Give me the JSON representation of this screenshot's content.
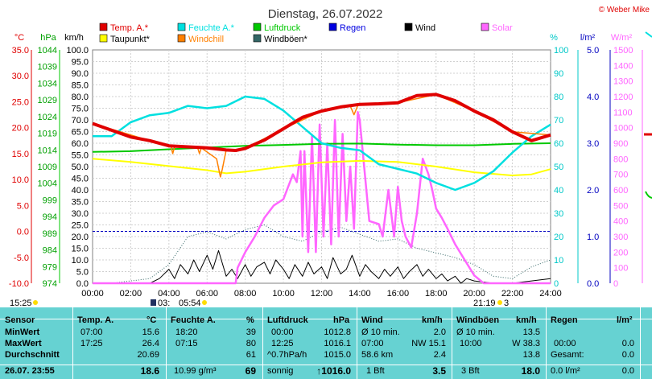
{
  "header": {
    "title": "Dienstag, 26.07.2022",
    "copyright": "© Weber Mike"
  },
  "axis_units": {
    "temp": "°C",
    "pressure": "hPa",
    "wind": "km/h",
    "humidity": "%",
    "rain": "l/m²",
    "solar": "W/m²"
  },
  "legend": [
    {
      "label": "Temp. A.*",
      "color": "#e00000"
    },
    {
      "label": "Feuchte A.*",
      "color": "#00e0e0"
    },
    {
      "label": "Luftdruck",
      "color": "#00c800"
    },
    {
      "label": "Regen",
      "color": "#0000e0"
    },
    {
      "label": "Wind",
      "color": "#000000"
    },
    {
      "label": "Solar",
      "color": "#ff66ff"
    },
    {
      "label": "Taupunkt*",
      "color": "#ffff00"
    },
    {
      "label": "Windchill",
      "color": "#ff8000"
    },
    {
      "label": "Windböen*",
      "color": "#336666"
    }
  ],
  "sun": {
    "time_left": "15:25",
    "sunrise": "05:54",
    "moon_marker": "03:",
    "sunset": "21:19",
    "moon_after": "3"
  },
  "chart_data": {
    "type": "line",
    "x_ticks": [
      "00:00",
      "02:00",
      "04:00",
      "06:00",
      "08:00",
      "10:00",
      "12:00",
      "14:00",
      "16:00",
      "18:00",
      "20:00",
      "22:00",
      "24:00"
    ],
    "xlim": [
      0,
      24
    ],
    "axes": {
      "temp": {
        "ticks": [
          "35.0",
          "30.0",
          "25.0",
          "20.0",
          "15.0",
          "10.0",
          "5.0",
          "0.0",
          "-5.0",
          "-10.0"
        ],
        "range": [
          -10,
          35
        ]
      },
      "pressure": {
        "ticks": [
          "1044",
          "1039",
          "1034",
          "1029",
          "1024",
          "1019",
          "1014",
          "1009",
          "1004",
          "999",
          "994",
          "989",
          "984",
          "979",
          "974"
        ],
        "range": [
          974,
          1044
        ]
      },
      "wind": {
        "ticks": [
          "100.0",
          "95.0",
          "90.0",
          "85.0",
          "80.0",
          "75.0",
          "70.0",
          "65.0",
          "60.0",
          "55.0",
          "50.0",
          "45.0",
          "40.0",
          "35.0",
          "30.0",
          "25.0",
          "20.0",
          "15.0",
          "10.0",
          "5.0",
          "0.0"
        ],
        "range": [
          0,
          100
        ]
      },
      "humidity": {
        "ticks": [
          "100",
          "90",
          "80",
          "70",
          "60",
          "50",
          "40",
          "30",
          "20",
          "10",
          "0"
        ],
        "range": [
          0,
          100
        ]
      },
      "rain": {
        "ticks": [
          "5.0",
          "4.0",
          "3.0",
          "2.0",
          "1.0",
          "0.0"
        ],
        "range": [
          0,
          5
        ]
      },
      "solar": {
        "ticks": [
          "1500",
          "1400",
          "1300",
          "1200",
          "1100",
          "1000",
          "900",
          "800",
          "700",
          "600",
          "500",
          "400",
          "300",
          "200",
          "100",
          "0"
        ],
        "range": [
          0,
          1500
        ]
      }
    },
    "series": [
      {
        "name": "Temp. A.*",
        "axis": "temp",
        "x": [
          0,
          1,
          2,
          3,
          4,
          5,
          6,
          7,
          7.5,
          8,
          9,
          10,
          11,
          12,
          13,
          14,
          15,
          16,
          17,
          18,
          19,
          20,
          21,
          22,
          23,
          24
        ],
        "y": [
          20.8,
          19.5,
          18.2,
          17.5,
          16.5,
          16.3,
          16.1,
          15.7,
          15.6,
          16,
          17.6,
          19.8,
          22,
          23.2,
          24,
          24.5,
          24.6,
          24.8,
          26.2,
          26.4,
          25.2,
          23.2,
          21.5,
          19.2,
          17.5,
          18.6
        ]
      },
      {
        "name": "Feuchte A.*",
        "axis": "humidity",
        "x": [
          0,
          1,
          2,
          3,
          4,
          5,
          6,
          7,
          8,
          9,
          10,
          11,
          12,
          13,
          14,
          15,
          16,
          17,
          18,
          19,
          20,
          21,
          22,
          23,
          24
        ],
        "y": [
          63,
          63,
          69,
          72,
          73,
          76,
          75,
          76,
          80,
          79,
          74,
          67,
          60,
          58,
          57,
          51,
          49,
          47,
          43,
          40,
          43,
          48,
          56,
          63,
          68
        ]
      },
      {
        "name": "Luftdruck",
        "axis": "pressure",
        "x": [
          0,
          2,
          4,
          6,
          8,
          10,
          12,
          14,
          16,
          18,
          20,
          22,
          24
        ],
        "y": [
          1013.4,
          1013.6,
          1014.2,
          1014.7,
          1015.2,
          1015.5,
          1015.8,
          1015.9,
          1015.6,
          1015.4,
          1015.4,
          1015.8,
          1016.0
        ]
      },
      {
        "name": "Taupunkt*",
        "axis": "temp",
        "x": [
          0,
          2,
          4,
          6,
          7,
          8,
          10,
          12,
          14,
          16,
          18,
          20,
          22,
          23,
          24
        ],
        "y": [
          14,
          13.4,
          12.6,
          11.8,
          11.2,
          11.5,
          12.5,
          13.3,
          13.6,
          13.4,
          12.5,
          11.4,
          10.8,
          11,
          12
        ]
      },
      {
        "name": "Windchill",
        "axis": "temp",
        "x": [
          0,
          3,
          4.1,
          4.2,
          4.3,
          5,
          5.5,
          5.6,
          5.7,
          6.5,
          6.7,
          6.8,
          7,
          7.5,
          8,
          10,
          12,
          13.5,
          13.7,
          13.9,
          14,
          16,
          18,
          20,
          22,
          24
        ],
        "y": [
          20.8,
          17.5,
          16.5,
          15,
          16.3,
          16.3,
          16.2,
          15,
          16.1,
          14,
          10.5,
          12,
          15.7,
          15.6,
          16,
          19.8,
          23.2,
          24.2,
          22.5,
          24.3,
          24.5,
          24.8,
          26.4,
          23.2,
          19.2,
          18.6
        ]
      },
      {
        "name": "Solar",
        "axis": "solar",
        "x": [
          0,
          7.5,
          7.6,
          8,
          8.5,
          9,
          9.5,
          10,
          10.5,
          10.7,
          10.9,
          11,
          11.1,
          11.3,
          11.5,
          11.7,
          11.9,
          12.1,
          12.3,
          12.5,
          12.7,
          12.9,
          13.1,
          13.3,
          13.5,
          13.7,
          13.9,
          14,
          14.5,
          15,
          15.2,
          15.5,
          15.8,
          16,
          16.2,
          16.4,
          16.7,
          17,
          17.3,
          17.6,
          17.8,
          18,
          18.3,
          18.6,
          19,
          19.5,
          20,
          20.5,
          24
        ],
        "y": [
          0,
          0,
          100,
          200,
          300,
          420,
          500,
          540,
          700,
          650,
          850,
          300,
          850,
          200,
          950,
          200,
          1020,
          300,
          900,
          250,
          1050,
          300,
          960,
          400,
          750,
          350,
          1100,
          1050,
          400,
          380,
          300,
          600,
          300,
          620,
          400,
          300,
          230,
          450,
          800,
          700,
          600,
          480,
          420,
          350,
          250,
          150,
          50,
          0,
          0
        ]
      },
      {
        "name": "Wind",
        "axis": "wind",
        "x": [
          0,
          1,
          2,
          3,
          3.5,
          4,
          4.3,
          4.6,
          5,
          5.3,
          5.6,
          6,
          6.3,
          6.6,
          7,
          7.3,
          7.6,
          8,
          8.3,
          8.6,
          9,
          9.3,
          9.6,
          10,
          10.3,
          10.6,
          11,
          11.3,
          11.6,
          12,
          12.3,
          12.6,
          13,
          13.3,
          13.6,
          14,
          14.3,
          14.6,
          15,
          15.3,
          15.6,
          16,
          16.3,
          16.6,
          17,
          17.3,
          17.6,
          18,
          18.3,
          18.6,
          19,
          19.3,
          19.6,
          20,
          21,
          22,
          23,
          24
        ],
        "y": [
          0,
          0,
          0,
          0,
          2,
          6,
          2,
          8,
          4,
          10,
          5,
          12,
          6,
          14,
          3,
          6,
          2,
          8,
          3,
          7,
          9,
          4,
          10,
          6,
          2,
          8,
          3,
          9,
          4,
          7,
          2,
          11,
          4,
          6,
          12,
          3,
          8,
          5,
          2,
          6,
          3,
          7,
          2,
          5,
          8,
          3,
          6,
          2,
          4,
          1,
          3,
          0,
          2,
          1,
          0,
          0,
          1,
          2
        ]
      },
      {
        "name": "Windböen*",
        "axis": "wind",
        "x": [
          0,
          1,
          2,
          3,
          4,
          5,
          6,
          7,
          8,
          9,
          10,
          11,
          12,
          13,
          14,
          15,
          16,
          17,
          18,
          19,
          20,
          21,
          22,
          23,
          24
        ],
        "y": [
          0,
          0,
          1,
          2,
          8,
          20,
          22,
          19,
          23,
          25,
          20,
          18,
          22,
          24,
          21,
          18,
          19,
          15,
          13,
          11,
          8,
          3,
          2,
          7,
          10
        ]
      }
    ]
  },
  "stats": {
    "headers": {
      "sensor": "Sensor",
      "temp": "Temp. A.",
      "temp_unit": "°C",
      "hum": "Feuchte A.",
      "hum_unit": "%",
      "press": "Luftdruck",
      "press_unit": "hPa",
      "wind": "Wind",
      "wind_unit": "km/h",
      "gust": "Windböen",
      "gust_unit": "km/h",
      "rain": "Regen",
      "rain_unit": "l/m²"
    },
    "min": {
      "label": "MinWert",
      "temp_time": "07:00",
      "temp": "15.6",
      "hum_time": "18:20",
      "hum": "39",
      "press_time": "00:00",
      "press": "1012.8",
      "wind_desc": "Ø 10 min.",
      "wind": "2.0",
      "gust_desc": "Ø 10 min.",
      "gust": "13.5"
    },
    "max": {
      "label": "MaxWert",
      "temp_time": "17:25",
      "temp": "26.4",
      "hum_time": "07:15",
      "hum": "80",
      "press_time": "12:25",
      "press": "1016.1",
      "wind_time": "07:00",
      "wind": "NW 15.1",
      "gust_time": "10:00",
      "gust": "W 38.3",
      "rain_time": "00:00",
      "rain": "0.0"
    },
    "avg": {
      "label": "Durchschnitt",
      "temp": "20.69",
      "hum": "61",
      "press_desc": "^0.7hPa/h",
      "press": "1015.0",
      "wind_desc": "58.6 km",
      "wind": "2.4",
      "gust": "13.8",
      "rain_label": "Gesamt:",
      "rain": "0.0"
    },
    "current": {
      "label": "26.07. 23:55",
      "temp": "18.6",
      "hum_abs": "10.99 g/m³",
      "hum": "69",
      "press_desc": "sonnig",
      "press": "↑1016.0",
      "wind_desc": "1 Bft",
      "wind": "3.5",
      "gust_desc": "3 Bft",
      "gust": "18.0",
      "rain": "0.0 l/m²",
      "rain_rate": "0.0"
    }
  }
}
